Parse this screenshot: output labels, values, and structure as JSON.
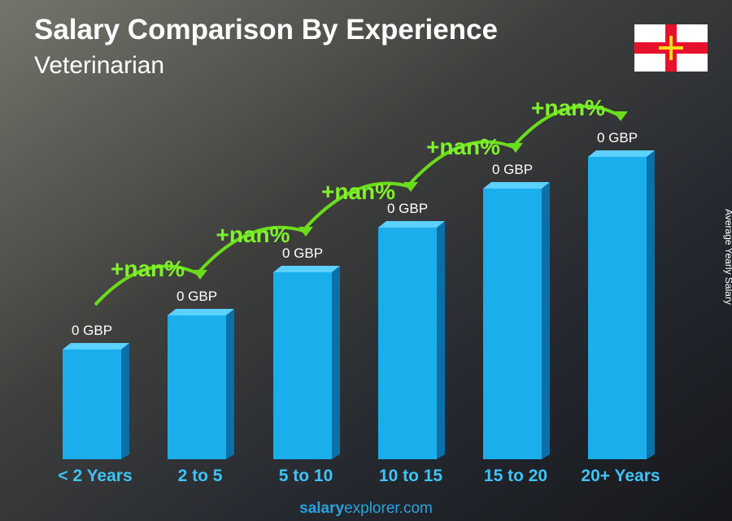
{
  "title": "Salary Comparison By Experience",
  "subtitle": "Veterinarian",
  "axis_label": "Average Yearly Salary",
  "bars": [
    {
      "category": "< 2 Years",
      "label": "0 GBP"
    },
    {
      "category": "2 to 5",
      "label": "0 GBP"
    },
    {
      "category": "5 to 10",
      "label": "0 GBP"
    },
    {
      "category": "10 to 15",
      "label": "0 GBP"
    },
    {
      "category": "15 to 20",
      "label": "0 GBP"
    },
    {
      "category": "20+ Years",
      "label": "0 GBP"
    }
  ],
  "changes": [
    "+nan%",
    "+nan%",
    "+nan%",
    "+nan%",
    "+nan%"
  ],
  "footer": {
    "brand": "salary",
    "rest": "explorer.com"
  }
}
